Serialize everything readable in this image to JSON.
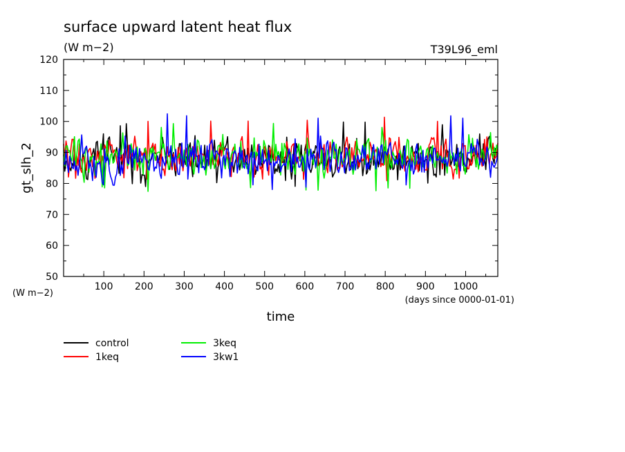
{
  "chart_data": {
    "type": "line",
    "title": "surface upward latent heat flux",
    "units": "(W m−2)",
    "run_label": "T39L96_eml",
    "ylabel": "gt_slh_2",
    "y_units_corner": "(W m−2)",
    "xlabel": "time",
    "x_units": "(days since 0000-01-01)",
    "xlim": [
      0,
      1080
    ],
    "ylim": [
      50,
      120
    ],
    "x_ticks": [
      100,
      200,
      300,
      400,
      500,
      600,
      700,
      800,
      900,
      1000
    ],
    "y_ticks": [
      50,
      60,
      70,
      80,
      90,
      100,
      110,
      120
    ],
    "grid": false,
    "legend_position": "bottom-left",
    "series": [
      {
        "name": "control",
        "color": "#000000",
        "mean": 88.3,
        "amplitude": 4.6,
        "low": 79,
        "high": 100.5
      },
      {
        "name": "1keq",
        "color": "#ff0000",
        "mean": 88.6,
        "amplitude": 4.4,
        "low": 80,
        "high": 101.5
      },
      {
        "name": "3keq",
        "color": "#00ee00",
        "mean": 89.2,
        "amplitude": 4.2,
        "low": 77,
        "high": 99.5
      },
      {
        "name": "3kw1",
        "color": "#0000ff",
        "mean": 87.8,
        "amplitude": 4.5,
        "low": 78,
        "high": 102.5
      }
    ]
  }
}
